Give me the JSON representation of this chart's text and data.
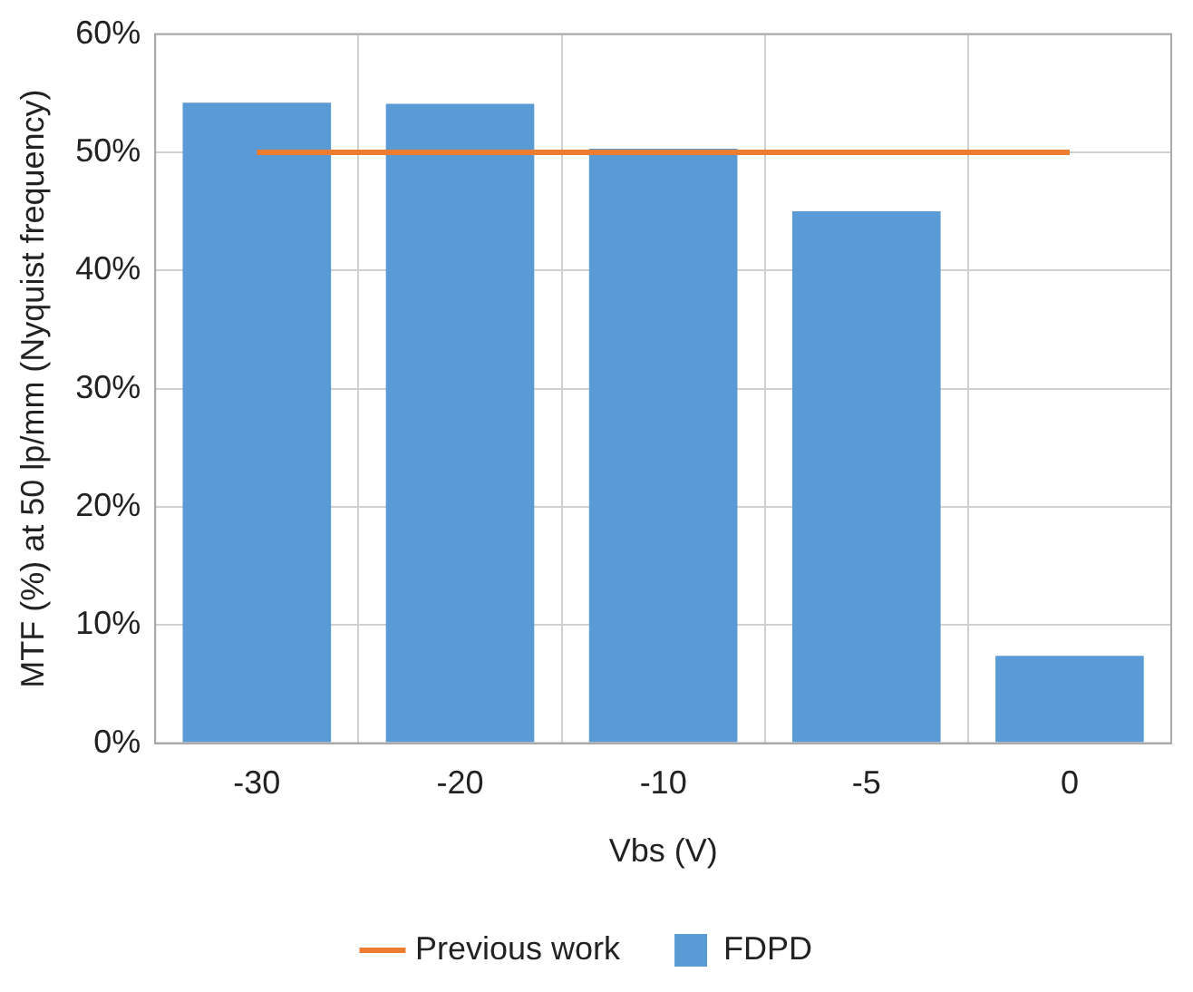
{
  "chart_data": {
    "type": "bar",
    "xlabel": "Vbs (V)",
    "ylabel": "MTF (%) at 50 lp/mm (Nyquist frequency)",
    "categories": [
      "-30",
      "-20",
      "-10",
      "-5",
      "0"
    ],
    "series": [
      {
        "name": "FDPD",
        "color": "#5b9bd5",
        "values": [
          54.2,
          54.1,
          50.3,
          45.0,
          7.4
        ]
      },
      {
        "name": "Previous work",
        "type": "line",
        "color": "#ed7d31",
        "values": [
          50,
          50,
          50,
          50,
          50
        ]
      }
    ],
    "ylim": [
      0,
      60
    ],
    "yticks": [
      {
        "value": 0,
        "label": "0%"
      },
      {
        "value": 10,
        "label": "10%"
      },
      {
        "value": 20,
        "label": "20%"
      },
      {
        "value": 30,
        "label": "30%"
      },
      {
        "value": 40,
        "label": "40%"
      },
      {
        "value": 50,
        "label": "50%"
      },
      {
        "value": 60,
        "label": "60%"
      }
    ],
    "grid": true,
    "legend": "bottom",
    "marker": "none"
  }
}
